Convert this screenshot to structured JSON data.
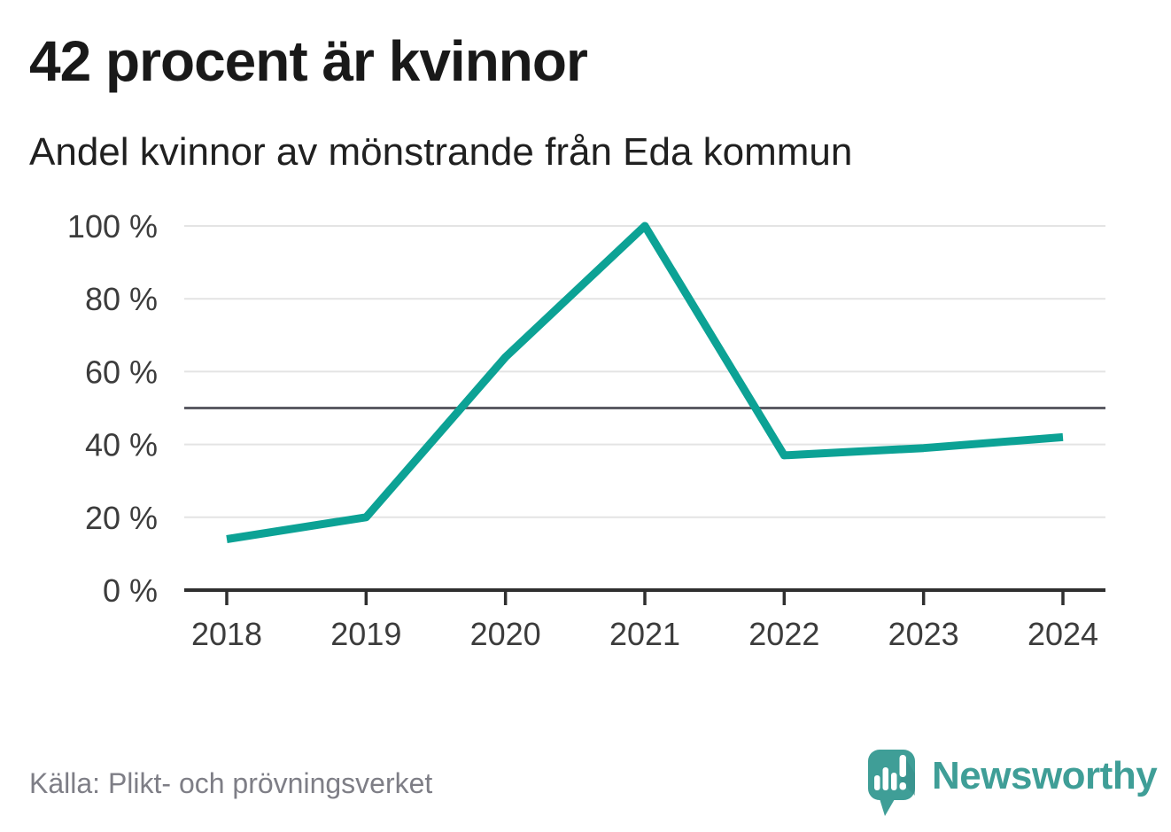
{
  "header": {
    "title": "42 procent är kvinnor",
    "subtitle": "Andel kvinnor av mönstrande från Eda kommun"
  },
  "chart_data": {
    "type": "line",
    "title": "42 procent är kvinnor",
    "subtitle": "Andel kvinnor av mönstrande från Eda kommun",
    "x": [
      "2018",
      "2019",
      "2020",
      "2021",
      "2022",
      "2023",
      "2024"
    ],
    "series": [
      {
        "name": "Andel kvinnor av mönstrande",
        "color": "#0ca295",
        "values": [
          14,
          20,
          64,
          100,
          37,
          39,
          42
        ]
      }
    ],
    "ylabel": "",
    "xlabel": "",
    "ylim": [
      0,
      100
    ],
    "yticks": [
      0,
      20,
      40,
      60,
      80,
      100
    ],
    "ytick_suffix": " %",
    "reference_line": 50,
    "grid": true,
    "legend_position": "none"
  },
  "footer": {
    "source": "Källa: Plikt- och prövningsverket",
    "brand": "Newsworthy"
  },
  "colors": {
    "accent": "#0ca295",
    "grid": "#e4e4e4",
    "axis": "#2f2f2f",
    "reference": "#5b5b63",
    "tick_text": "#3c3c3c",
    "title_text": "#191919",
    "muted_text": "#7e7e86",
    "logo": "#3f9e97"
  }
}
